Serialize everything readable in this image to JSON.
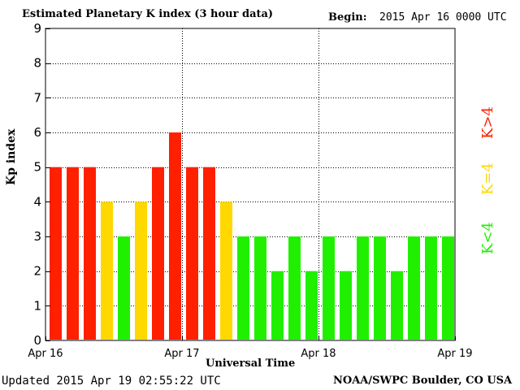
{
  "header": {
    "title": "Estimated Planetary K index (3 hour data)",
    "begin_label": "Begin:",
    "begin_value": "2015 Apr 16 0000 UTC"
  },
  "footer": {
    "updated": "Updated 2015 Apr 19 02:55:22 UTC",
    "credit": "NOAA/SWPC Boulder, CO USA"
  },
  "legend": [
    {
      "label": "K>4",
      "color": "#ff2000"
    },
    {
      "label": "K=4",
      "color": "#ffd800"
    },
    {
      "label": "K<4",
      "color": "#20f000"
    }
  ],
  "chart_data": {
    "type": "bar",
    "title": "Estimated Planetary K index (3 hour data)",
    "xlabel": "Universal Time",
    "ylabel": "Kp index",
    "ylim": [
      0,
      9
    ],
    "yticks": [
      0,
      1,
      2,
      3,
      4,
      5,
      6,
      7,
      8,
      9
    ],
    "xticks": [
      "Apr 16",
      "Apr 17",
      "Apr 18",
      "Apr 19"
    ],
    "grid": true,
    "values": [
      5,
      5,
      5,
      4,
      3,
      4,
      5,
      6,
      5,
      5,
      4,
      3,
      3,
      2,
      3,
      2,
      3,
      2,
      3,
      3,
      2,
      3,
      3,
      3
    ],
    "colors": {
      "above": "#ff2000",
      "equal": "#ffd800",
      "below": "#20f000"
    }
  }
}
